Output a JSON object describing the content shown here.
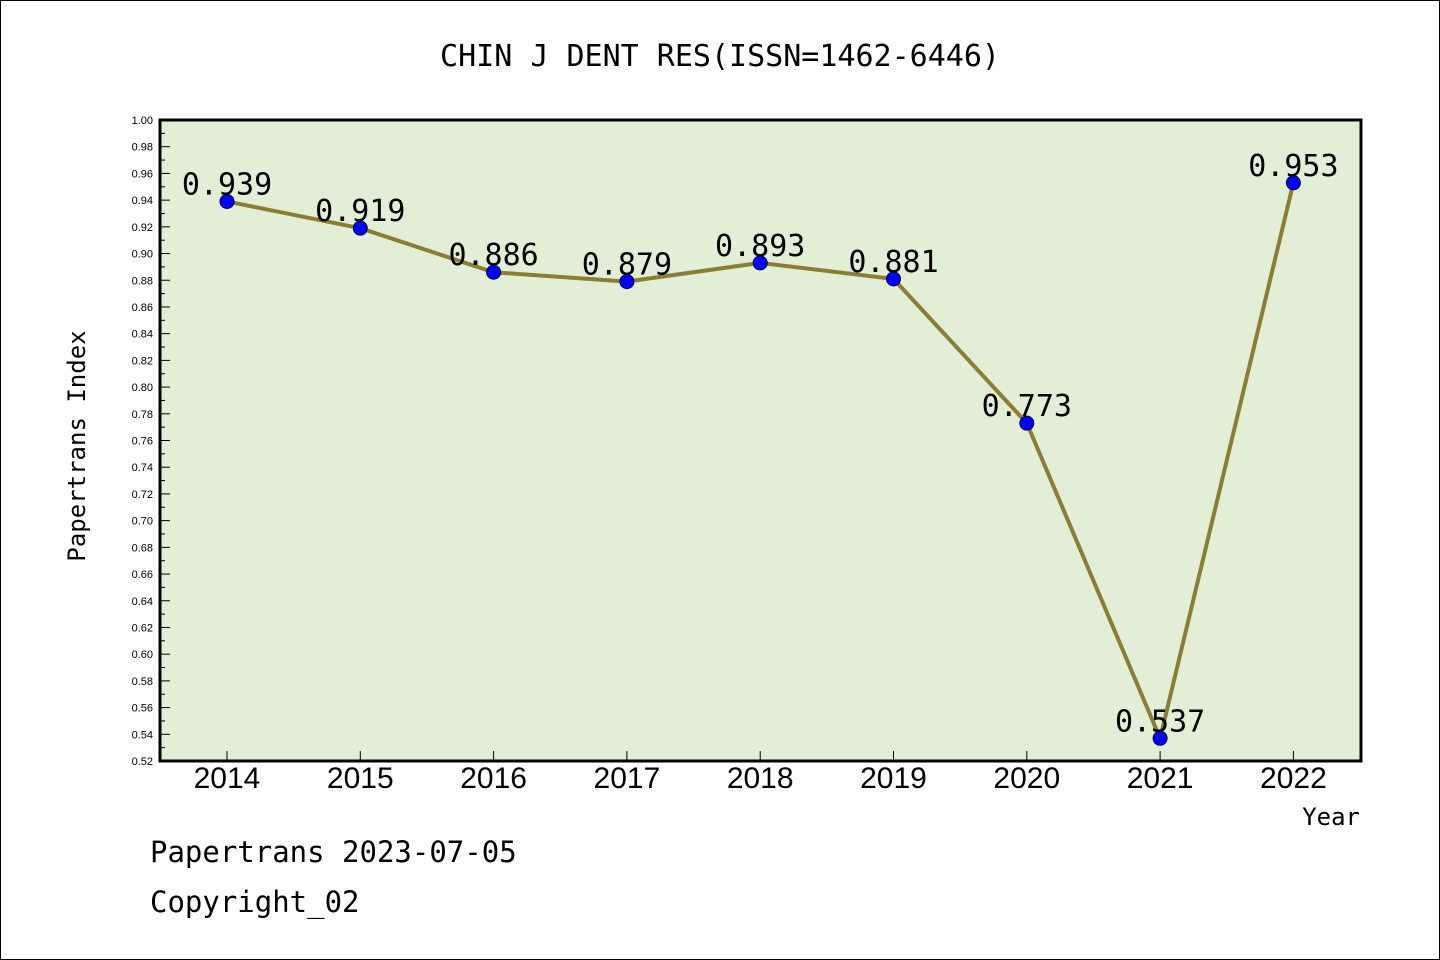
{
  "chart_data": {
    "type": "line",
    "title": "CHIN J DENT RES(ISSN=1462-6446)",
    "xlabel": "Year",
    "ylabel": "Papertrans Index",
    "categories": [
      "2014",
      "2015",
      "2016",
      "2017",
      "2018",
      "2019",
      "2020",
      "2021",
      "2022"
    ],
    "values": [
      0.939,
      0.919,
      0.886,
      0.879,
      0.893,
      0.881,
      0.773,
      0.537,
      0.953
    ],
    "data_labels": [
      "0.939",
      "0.919",
      "0.886",
      "0.879",
      "0.893",
      "0.881",
      "0.773",
      "0.537",
      "0.953"
    ],
    "ylim": [
      0.52,
      1.0
    ],
    "yticks": [
      "0.52",
      "0.54",
      "0.56",
      "0.58",
      "0.60",
      "0.62",
      "0.64",
      "0.66",
      "0.68",
      "0.70",
      "0.72",
      "0.74",
      "0.76",
      "0.78",
      "0.80",
      "0.82",
      "0.84",
      "0.86",
      "0.88",
      "0.90",
      "0.92",
      "0.94",
      "0.96",
      "0.98",
      "1.00"
    ],
    "grid": false,
    "legend": "none",
    "colors": {
      "plot_background": "#e2efd6",
      "line": "#8c7d35",
      "marker": "#0000ff"
    }
  },
  "footer": {
    "line1": "Papertrans 2023-07-05",
    "line2": "Copyright_02"
  }
}
